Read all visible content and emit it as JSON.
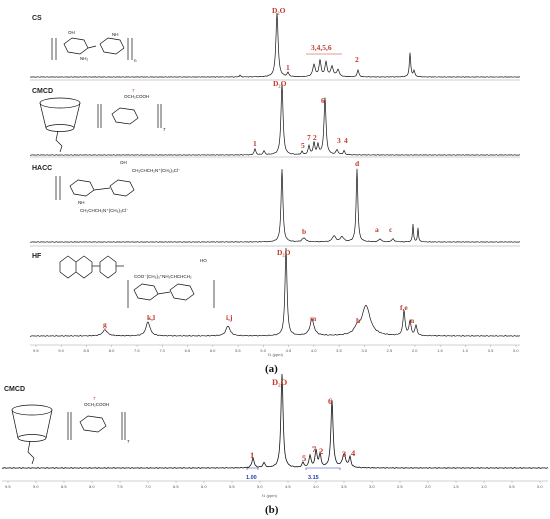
{
  "panels": {
    "a_label": "(a)",
    "b_label": "(b)"
  },
  "samples": {
    "cs": "CS",
    "cmcd": "CMCD",
    "hacc": "HACC",
    "hf": "HF",
    "cmcd_b": "CMCD"
  },
  "axis": {
    "unit_label": "f1 (ppm)",
    "ticks_a": [
      "9.5",
      "9.0",
      "8.5",
      "8.0",
      "7.5",
      "7.0",
      "6.5",
      "6.0",
      "5.5",
      "5.0",
      "4.5",
      "4.0",
      "3.5",
      "3.0",
      "2.5",
      "2.0",
      "1.5",
      "1.0",
      "0.5",
      "0.0"
    ],
    "ticks_b": [
      "9.5",
      "9.0",
      "8.5",
      "8.0",
      "7.5",
      "7.0",
      "6.5",
      "6.0",
      "5.5",
      "5.0",
      "4.5",
      "4.0",
      "3.5",
      "3.0",
      "2.5",
      "2.0",
      "1.5",
      "1.0",
      "0.5",
      "0.0"
    ]
  },
  "integrals": {
    "i1": "1.00",
    "i2": "3.15"
  },
  "peak_labels": {
    "solvent": "D₂O",
    "cs_1": "1",
    "cs_3456": "3,4,5,6",
    "cs_2": "2",
    "cmcd_1": "1",
    "cmcd_5": "5",
    "cmcd_7": "7",
    "cmcd_2": "2",
    "cmcd_3": "3",
    "cmcd_4": "4",
    "cmcd_6": "6",
    "hacc_b": "b",
    "hacc_a": "a",
    "hacc_c": "c",
    "hacc_d": "d",
    "hf_g": "g",
    "hf_kl": "k,l",
    "hf_ij": "i,j",
    "hf_m": "m",
    "hf_h": "h",
    "hf_fe": "f,e",
    "hf_n": "n",
    "b_1": "1",
    "b_5": "5",
    "b_7": "7",
    "b_2": "2",
    "b_3": "3",
    "b_4": "4",
    "b_6": "6"
  },
  "structure_text": {
    "cs_oh": "OH",
    "cs_nh": "NH",
    "cs_nh2": "NH₂",
    "cs_n": "n",
    "cmcd_cooh": "OCH₂COOH",
    "cmcd_seven": "7",
    "cmcd_n7": "7",
    "hacc_quat1": "CH₂CHCH₂N⁺(CH₃)₃Cl⁻",
    "hacc_quat2": "CH₂CHCH₂N⁺(CH₃)₃Cl⁻",
    "hacc_oh": "OH",
    "hacc_nh": "NH",
    "hf_quat": "COO⁻(CH₃)₃⁺NH₂CHCHCH₂",
    "hf_ho": "HO",
    "cmcd_b_cooh": "OCH₂COOH",
    "cmcd_b_seven": "7",
    "cmcd_b_n7": "7"
  },
  "colors": {
    "spectrum": "#111111",
    "label": "#c0392b",
    "integral": "#2040b0"
  }
}
